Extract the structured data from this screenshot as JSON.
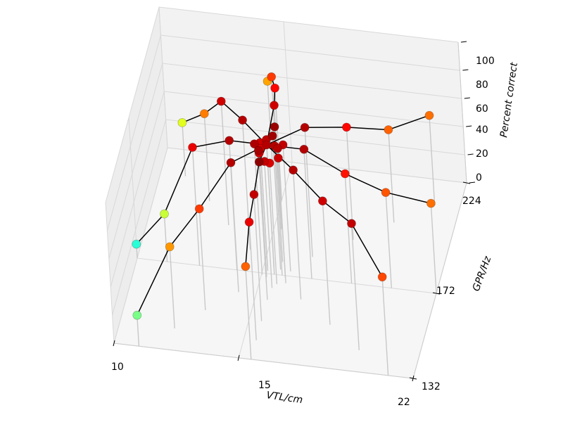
{
  "chart_data": {
    "type": "scatter",
    "subtype": "3d-spoke-scatter",
    "xlabel": "VTL/cm",
    "ylabel": "GPR/Hz",
    "zlabel": "Percent correct",
    "x_ticks": [
      "10",
      "15",
      "22"
    ],
    "y_ticks": [
      "132",
      "172",
      "224"
    ],
    "z_ticks": [
      "0",
      "20",
      "40",
      "60",
      "80",
      "100"
    ],
    "xlim": [
      10,
      22
    ],
    "ylim": [
      132,
      224
    ],
    "zlim": [
      0,
      100
    ],
    "grid": true,
    "colormap": "jet",
    "center": {
      "vtl": 15.5,
      "gpr": 172,
      "percent": 92
    },
    "center_cluster": [
      92,
      88,
      90,
      95,
      93,
      89,
      91,
      94,
      90,
      87,
      86,
      96,
      88,
      92
    ],
    "spokes": [
      {
        "points": [
          {
            "vtl": 15.3,
            "gpr": 193,
            "percent": 88
          },
          {
            "vtl": 15.0,
            "gpr": 206,
            "percent": 80
          },
          {
            "vtl": 14.6,
            "gpr": 216,
            "percent": 72
          },
          {
            "vtl": 14.2,
            "gpr": 224,
            "percent": 56
          }
        ]
      },
      {
        "points": [
          {
            "vtl": 14.3,
            "gpr": 182,
            "percent": 92
          },
          {
            "vtl": 13.2,
            "gpr": 192,
            "percent": 88
          },
          {
            "vtl": 12.2,
            "gpr": 202,
            "percent": 62
          },
          {
            "vtl": 11.0,
            "gpr": 212,
            "percent": 38
          }
        ]
      },
      {
        "points": [
          {
            "vtl": 14.0,
            "gpr": 172,
            "percent": 92
          },
          {
            "vtl": 12.5,
            "gpr": 172,
            "percent": 84
          },
          {
            "vtl": 11.2,
            "gpr": 172,
            "percent": 34
          },
          {
            "vtl": 10.0,
            "gpr": 172,
            "percent": 10
          }
        ]
      },
      {
        "points": [
          {
            "vtl": 14.3,
            "gpr": 162,
            "percent": 92
          },
          {
            "vtl": 13.2,
            "gpr": 152,
            "percent": 72
          },
          {
            "vtl": 12.2,
            "gpr": 142,
            "percent": 58
          },
          {
            "vtl": 11.0,
            "gpr": 132,
            "percent": 22
          }
        ]
      },
      {
        "points": [
          {
            "vtl": 15.5,
            "gpr": 160,
            "percent": 98
          },
          {
            "vtl": 15.5,
            "gpr": 150,
            "percent": 90
          },
          {
            "vtl": 15.5,
            "gpr": 141,
            "percent": 84
          },
          {
            "vtl": 15.5,
            "gpr": 132,
            "percent": 66
          }
        ]
      },
      {
        "points": [
          {
            "vtl": 16.8,
            "gpr": 162,
            "percent": 92
          },
          {
            "vtl": 18.2,
            "gpr": 152,
            "percent": 88
          },
          {
            "vtl": 19.6,
            "gpr": 142,
            "percent": 90
          },
          {
            "vtl": 21.0,
            "gpr": 132,
            "percent": 70
          }
        ]
      },
      {
        "points": [
          {
            "vtl": 17.0,
            "gpr": 172,
            "percent": 92
          },
          {
            "vtl": 18.6,
            "gpr": 172,
            "percent": 78
          },
          {
            "vtl": 20.2,
            "gpr": 172,
            "percent": 68
          },
          {
            "vtl": 22.0,
            "gpr": 172,
            "percent": 64
          }
        ]
      },
      {
        "points": [
          {
            "vtl": 16.8,
            "gpr": 182,
            "percent": 92
          },
          {
            "vtl": 18.2,
            "gpr": 192,
            "percent": 80
          },
          {
            "vtl": 19.6,
            "gpr": 202,
            "percent": 66
          },
          {
            "vtl": 21.0,
            "gpr": 212,
            "percent": 64
          }
        ]
      }
    ]
  }
}
